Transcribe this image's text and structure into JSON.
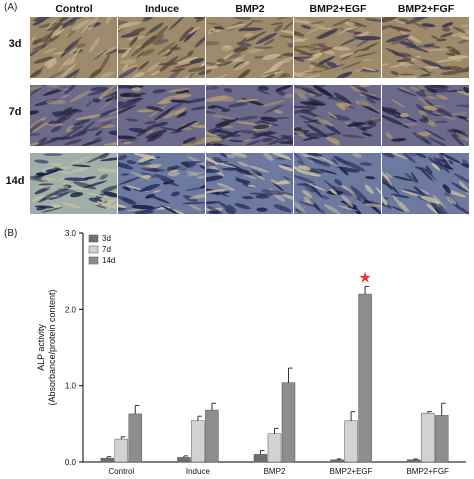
{
  "panel_a": {
    "label": "(A)",
    "columns": [
      "Control",
      "Induce",
      "BMP2",
      "BMP2+EGF",
      "BMP2+FGF"
    ],
    "rows": [
      "3d",
      "7d",
      "14d"
    ]
  },
  "panel_b": {
    "label": "(B)",
    "significance_marker": "★"
  },
  "chart_data": {
    "type": "bar",
    "categories": [
      "Control",
      "Induce",
      "BMP2",
      "BMP2+EGF",
      "BMP2+FGF"
    ],
    "series": [
      {
        "name": "3d",
        "values": [
          0.05,
          0.06,
          0.1,
          0.03,
          0.03
        ],
        "errors": [
          0.02,
          0.02,
          0.05,
          0.01,
          0.01
        ],
        "color": "#6f6f6f"
      },
      {
        "name": "7d",
        "values": [
          0.3,
          0.54,
          0.37,
          0.54,
          0.64
        ],
        "errors": [
          0.03,
          0.06,
          0.07,
          0.12,
          0.02
        ],
        "color": "#d2d2d2"
      },
      {
        "name": "14d",
        "values": [
          0.63,
          0.68,
          1.04,
          2.2,
          0.61
        ],
        "errors": [
          0.11,
          0.09,
          0.19,
          0.1,
          0.16
        ],
        "color": "#8d8d8d"
      }
    ],
    "ylabel_line1": "ALP activity",
    "ylabel_line2": "(Absorbance/protein content)",
    "ylim": [
      0,
      3.0
    ],
    "yticks": [
      "0.0",
      "1.0",
      "2.0",
      "3.0"
    ],
    "ytick_values": [
      0,
      1,
      2,
      3
    ],
    "grid": false,
    "legend_position": "top-left",
    "star_on": {
      "series": "14d",
      "category": "BMP2+EGF"
    },
    "star_color": "#e8343a"
  }
}
